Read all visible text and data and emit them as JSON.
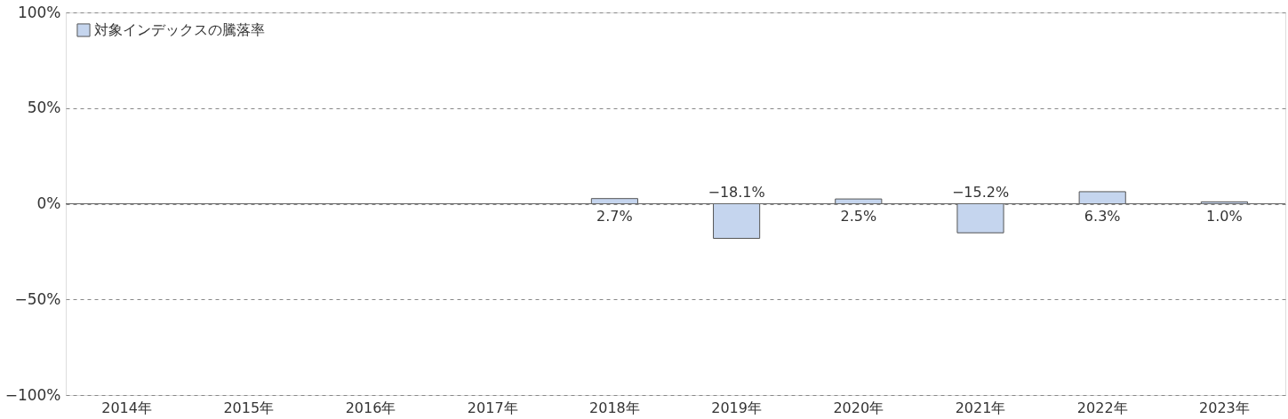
{
  "chart_data": {
    "type": "bar",
    "categories": [
      "2014年",
      "2015年",
      "2016年",
      "2017年",
      "2018年",
      "2019年",
      "2020年",
      "2021年",
      "2022年",
      "2023年"
    ],
    "series": [
      {
        "name": "対象インデックスの騰落率",
        "color": "#c5d5ee",
        "values": [
          null,
          null,
          null,
          null,
          2.7,
          -18.1,
          2.5,
          -15.2,
          6.3,
          1.0
        ],
        "value_labels": [
          null,
          null,
          null,
          null,
          "2.7%",
          "−18.1%",
          "2.5%",
          "−15.2%",
          "6.3%",
          "1.0%"
        ]
      }
    ],
    "ylim": [
      -100,
      100
    ],
    "yticks": [
      {
        "value": -100,
        "label": "−100%"
      },
      {
        "value": -50,
        "label": "−50%"
      },
      {
        "value": 0,
        "label": "0%"
      },
      {
        "value": 50,
        "label": "50%"
      },
      {
        "value": 100,
        "label": "100%"
      }
    ],
    "grid": "y",
    "legend": "top left"
  }
}
